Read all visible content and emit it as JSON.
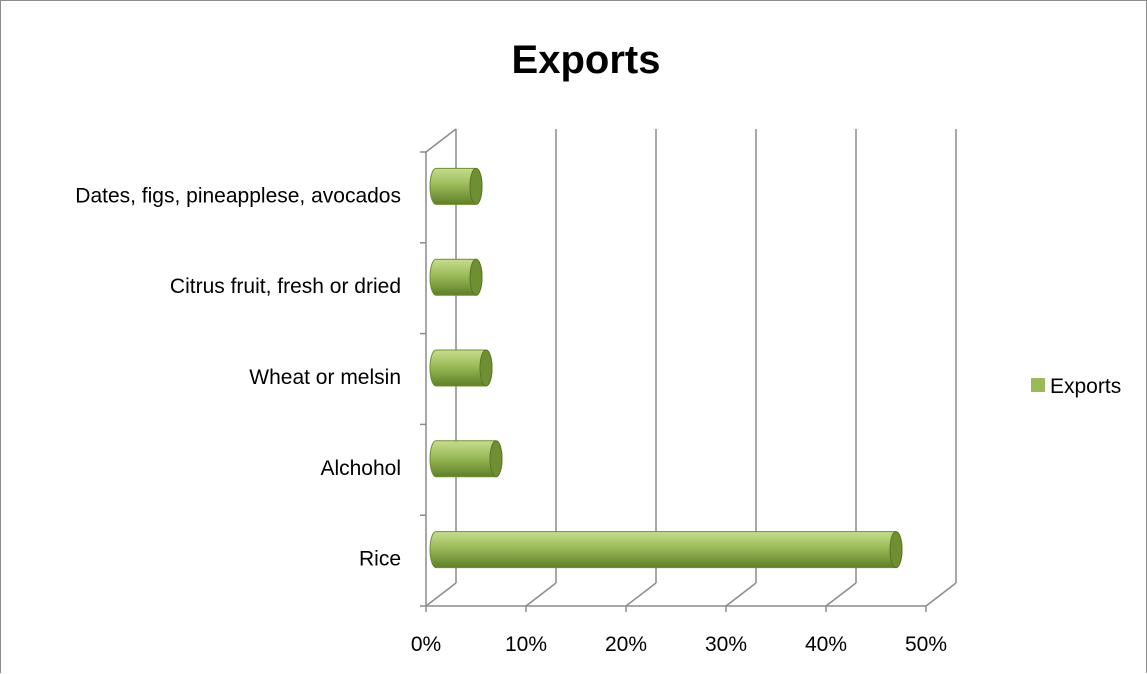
{
  "chart_data": {
    "type": "bar",
    "orientation": "horizontal",
    "style": "3d-cylinder",
    "title": "Exports",
    "categories": [
      "Rice",
      "Alchohol",
      "Wheat or melsin",
      "Citrus fruit, fresh or dried",
      "Dates, figs, pineapplese, avocados"
    ],
    "series": [
      {
        "name": "Exports",
        "values": [
          46,
          6,
          5,
          4,
          4
        ]
      }
    ],
    "xlim": [
      0,
      50
    ],
    "x_ticks": [
      "0%",
      "10%",
      "20%",
      "30%",
      "40%",
      "50%"
    ],
    "grid": true,
    "legend_position": "right",
    "colors": {
      "bar": "#9bbb59",
      "bar_dark": "#6f8f33",
      "bar_light": "#c6dd8e",
      "grid": "#8c8c8c"
    }
  }
}
